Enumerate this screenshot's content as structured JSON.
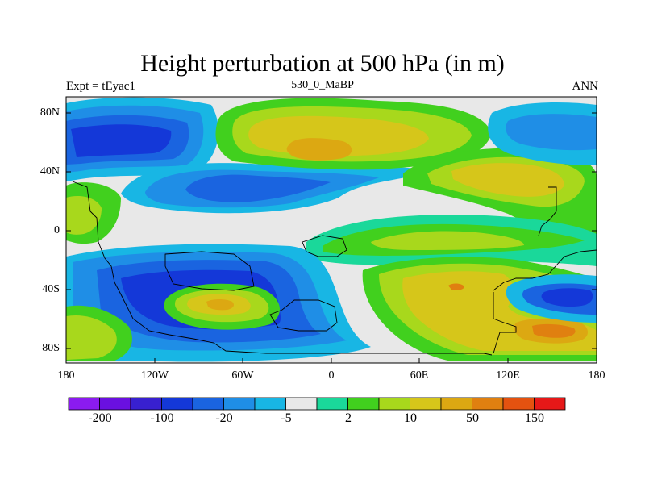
{
  "title": "Height perturbation at 500 hPa (in m)",
  "subtitle_left": "Expt = tEyac1",
  "subtitle_center": "530_0_MaBP",
  "subtitle_right": "ANN",
  "y_ticks": [
    "80N",
    "40N",
    "0",
    "40S",
    "80S"
  ],
  "x_ticks": [
    "180",
    "120W",
    "60W",
    "0",
    "60E",
    "120E",
    "180"
  ],
  "colorbar": {
    "colors": [
      "#8b1bf0",
      "#6a10e0",
      "#3820d0",
      "#1438d8",
      "#1a64e0",
      "#1f8ee6",
      "#18b6e4",
      "#e8e8e8",
      "#1ad89a",
      "#41d01e",
      "#a8d81c",
      "#d6c61a",
      "#dca812",
      "#e08010",
      "#e45210",
      "#e61818"
    ],
    "labels": [
      "-200",
      "-100",
      "-20",
      "-5",
      "2",
      "10",
      "50",
      "150"
    ]
  },
  "legend_colors": {
    "neutral": "#e8e8e8",
    "blue_dark": "#1438d8",
    "blue": "#1a64e0",
    "blue_mid": "#1f8ee6",
    "cyan": "#18b6e4",
    "teal": "#1ad89a",
    "green": "#41d01e",
    "lime": "#a8d81c",
    "yellow": "#d6c61a",
    "orange": "#dca812",
    "dark_orange": "#e08010"
  }
}
